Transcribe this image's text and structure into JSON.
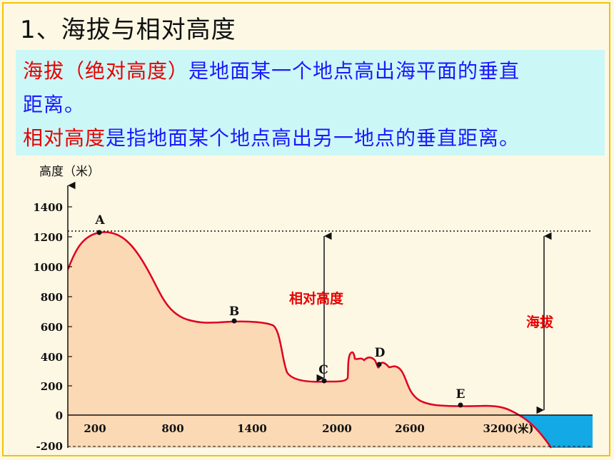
{
  "title": "1、海拔与相对高度",
  "definitions": {
    "line1_red": "海拔（绝对高度）",
    "line1_blue": "是地面某一个地点高出海平面的垂直",
    "line2_blue": "距离。",
    "line3_red": "相对高度",
    "line3_blue": "是指地面某个地点高出另一地点的垂直距离。"
  },
  "diagram": {
    "y_axis_label": "高度（米）",
    "y_ticks": [
      "1400",
      "1200",
      "1000",
      "800",
      "600",
      "400",
      "200",
      "0",
      "-200"
    ],
    "x_ticks": [
      "200",
      "800",
      "1400",
      "2000",
      "2600",
      "3200(米)"
    ],
    "points": {
      "A": "A",
      "B": "B",
      "C": "C",
      "D": "D",
      "E": "E"
    },
    "relative_height_label": "相对高度",
    "altitude_label": "海拔",
    "colors": {
      "terrain_fill": "#fbd9b4",
      "terrain_line": "#e00020",
      "sea": "#13a9e4",
      "label_red": "#e80000"
    }
  }
}
